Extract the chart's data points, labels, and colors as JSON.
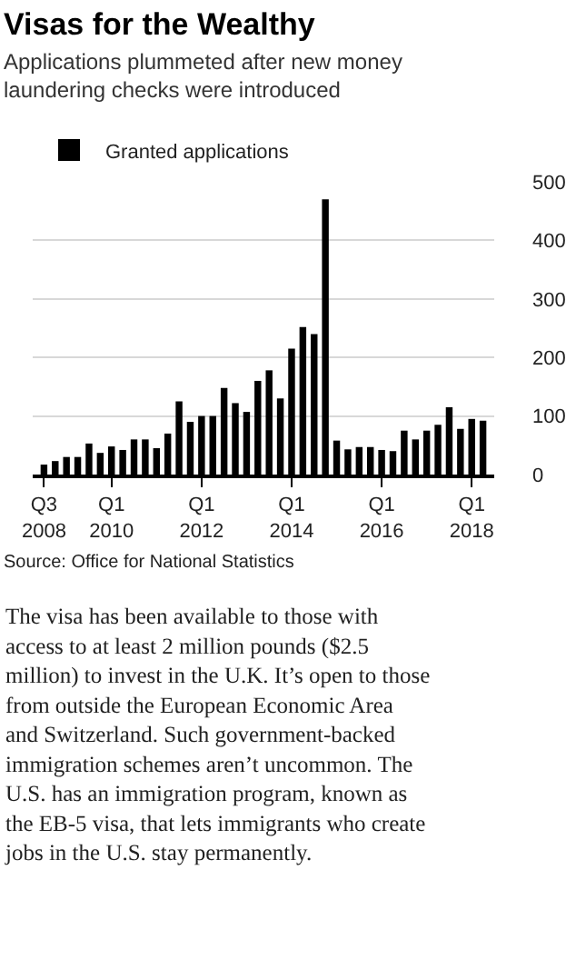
{
  "chart_data": {
    "type": "bar",
    "title": "Visas for the Wealthy",
    "subtitle": "Applications plummeted after new money\nlaundering checks were introduced",
    "categories": [
      "Q3\n2008",
      null,
      null,
      null,
      null,
      null,
      "Q1\n2010",
      null,
      null,
      null,
      null,
      null,
      null,
      null,
      "Q1\n2012",
      null,
      null,
      null,
      null,
      null,
      null,
      null,
      "Q1\n2014",
      null,
      null,
      null,
      null,
      null,
      null,
      null,
      "Q1\n2016",
      null,
      null,
      null,
      null,
      null,
      null,
      null,
      "Q1\n2018",
      null
    ],
    "series": [
      {
        "name": "Granted applications",
        "color": "#000000",
        "values": [
          17,
          23,
          30,
          30,
          53,
          37,
          48,
          42,
          60,
          60,
          45,
          70,
          125,
          90,
          100,
          100,
          148,
          122,
          107,
          160,
          178,
          130,
          215,
          252,
          240,
          470,
          58,
          43,
          47,
          47,
          42,
          40,
          75,
          60,
          75,
          85,
          115,
          78,
          95,
          92
        ]
      }
    ],
    "ylim": [
      0,
      500
    ],
    "yticks": [
      0,
      100,
      200,
      300,
      400,
      500
    ],
    "grid": "y",
    "legend": "top left",
    "annotations": [
      "Source: Office for National Statistics",
      "The visa has been available to those with\naccess to at least 2 million pounds ($2.5\nmillion) to invest in the U.K. It’s open to those\nfrom outside the European Economic Area\nand Switzerland. Such government-backed\nimmigration schemes aren’t uncommon. The\nU.S. has an immigration program, known as\nthe EB-5 visa, that lets immigrants who create\njobs in the U.S. stay permanently."
    ]
  }
}
